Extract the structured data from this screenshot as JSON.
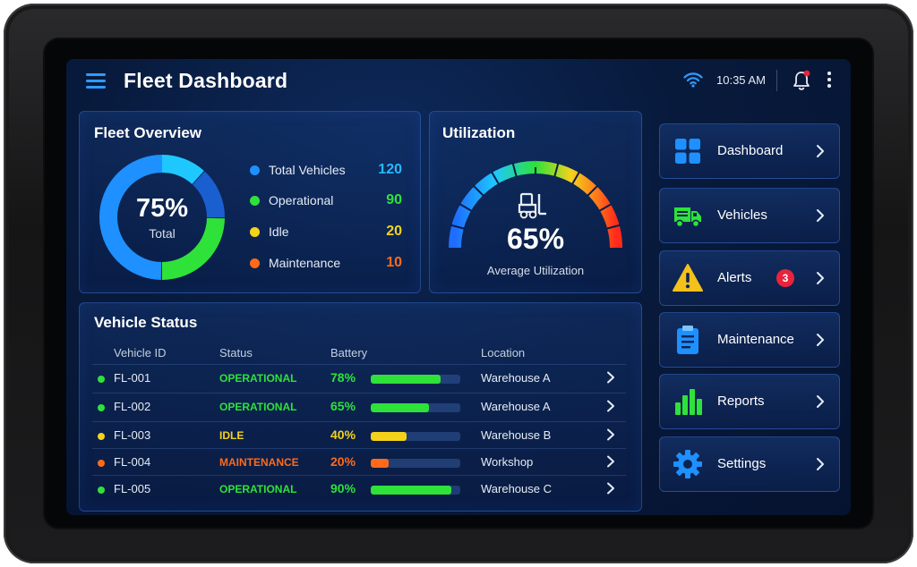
{
  "header": {
    "title": "Fleet Dashboard",
    "time": "10:35 AM",
    "icons": [
      "menu-icon",
      "wifi-icon",
      "bell-icon",
      "kebab-menu-icon"
    ]
  },
  "overview": {
    "title": "Fleet Overview",
    "percent": "75%",
    "percent_label": "Total",
    "items": [
      {
        "label": "Total Vehicles",
        "value": "120",
        "color": "#1e90ff"
      },
      {
        "label": "Operational",
        "value": "90",
        "color": "#2ee23a"
      },
      {
        "label": "Idle",
        "value": "20",
        "color": "#f4d21c"
      },
      {
        "label": "Maintenance",
        "value": "10",
        "color": "#ff6a1a"
      }
    ]
  },
  "utilization": {
    "title": "Utilization",
    "percent": "65%",
    "label": "Average Utilization",
    "level": 0.65
  },
  "vehicle_status": {
    "title": "Vehicle Status",
    "columns": [
      "Vehicle ID",
      "Status",
      "Battery",
      "Location"
    ],
    "rows": [
      {
        "id": "FL-001",
        "status": "OPERATIONAL",
        "battery": "78%",
        "battery_level": 0.78,
        "location": "Warehouse A",
        "color": "#2ee23a"
      },
      {
        "id": "FL-002",
        "status": "OPERATIONAL",
        "battery": "65%",
        "battery_level": 0.65,
        "location": "Warehouse A",
        "color": "#2ee23a"
      },
      {
        "id": "FL-003",
        "status": "IDLE",
        "battery": "40%",
        "battery_level": 0.4,
        "location": "Warehouse B",
        "color": "#f4d21c"
      },
      {
        "id": "FL-004",
        "status": "MAINTENANCE",
        "battery": "20%",
        "battery_level": 0.2,
        "location": "Workshop",
        "color": "#ff6a1a"
      },
      {
        "id": "FL-005",
        "status": "OPERATIONAL",
        "battery": "90%",
        "battery_level": 0.9,
        "location": "Warehouse C",
        "color": "#2ee23a"
      }
    ]
  },
  "nav": {
    "items": [
      {
        "label": "Dashboard",
        "icon": "grid-icon"
      },
      {
        "label": "Vehicles",
        "icon": "truck-icon"
      },
      {
        "label": "Alerts",
        "icon": "warning-icon",
        "badge": "3"
      },
      {
        "label": "Maintenance",
        "icon": "clipboard-icon"
      },
      {
        "label": "Reports",
        "icon": "bar-chart-icon"
      },
      {
        "label": "Settings",
        "icon": "gear-icon"
      }
    ]
  },
  "colors": {
    "accent": "#2f9bff",
    "operational": "#2ee23a",
    "idle": "#f4d21c",
    "maintenance": "#ff6a1a",
    "alert_badge": "#e8243c"
  }
}
